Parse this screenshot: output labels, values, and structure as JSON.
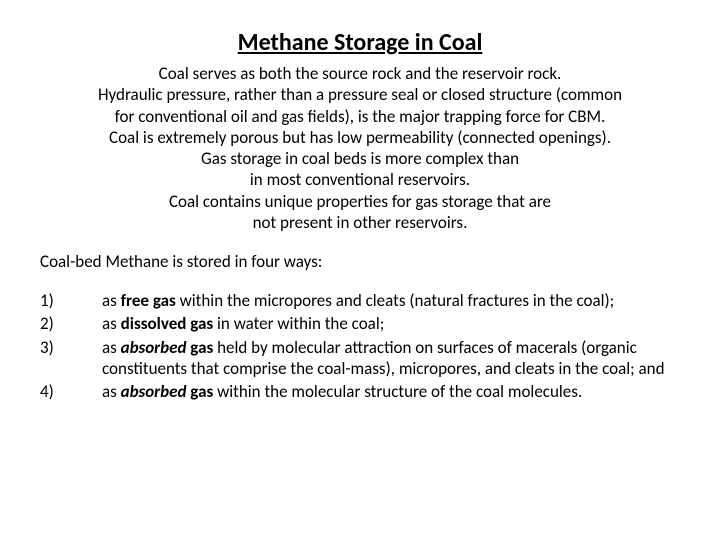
{
  "title": "Methane Storage in Coal",
  "intro": {
    "l1": "Coal serves as both the source rock and the reservoir rock.",
    "l2": "Hydraulic pressure, rather than a pressure seal or closed structure (common",
    "l3": "for conventional oil and gas fields), is the major trapping force for CBM.",
    "l4": "Coal is extremely porous but has low permeability (connected openings).",
    "l5": "Gas storage in coal beds is more complex than",
    "l6": "in most conventional reservoirs.",
    "l7": "Coal contains unique properties for gas storage that are",
    "l8": "not present in other reservoirs."
  },
  "subhead": "Coal-bed Methane is stored in four ways:",
  "items": [
    {
      "num": "1)",
      "pre": "as ",
      "bold": "free gas",
      "post": " within the micropores and cleats (natural fractures in the coal);"
    },
    {
      "num": "2)",
      "pre": "as ",
      "bold": "dissolved gas",
      "post": " in water within the coal;"
    },
    {
      "num": "3)",
      "pre": "as ",
      "bold": "absorbed",
      "mid": " gas",
      "post": " held by molecular attraction on surfaces of macerals (organic constituents that comprise the coal-mass), micropores, and cleats in the coal; and"
    },
    {
      "num": "4)",
      "pre": "as ",
      "bold": "absorbed",
      "mid": " gas",
      "post": " within the molecular structure of the coal molecules."
    }
  ]
}
